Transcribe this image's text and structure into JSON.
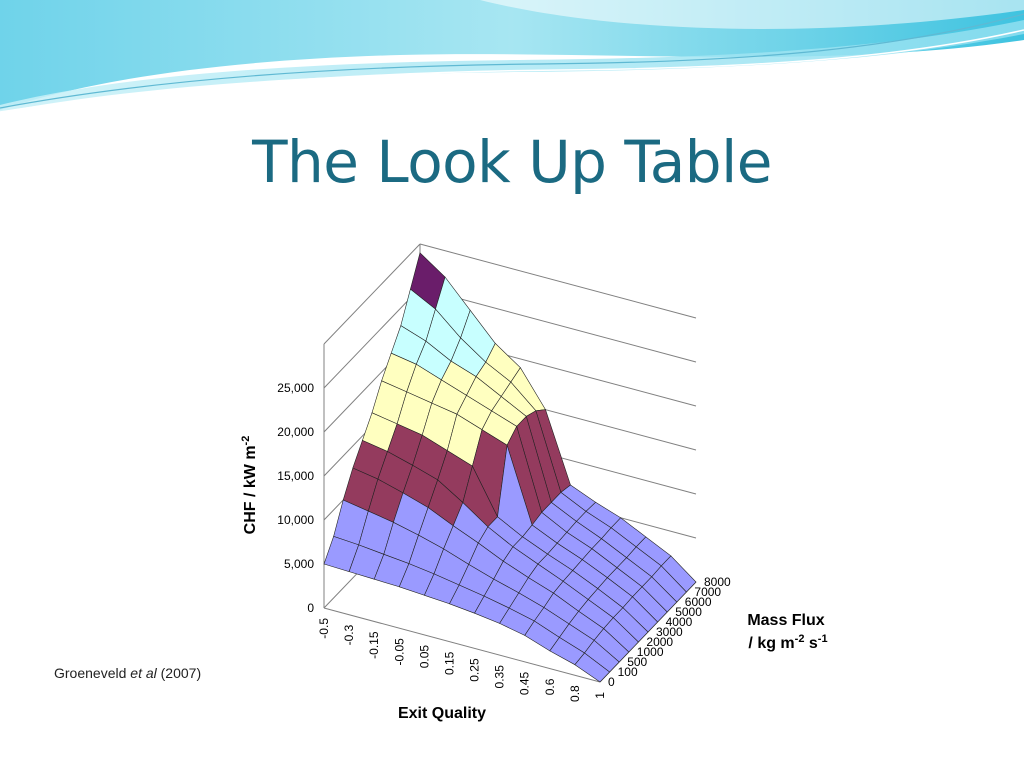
{
  "slide": {
    "title": "The Look Up Table",
    "citation": {
      "author": "Groeneveld",
      "etal": "et al",
      "year": "(2007)"
    }
  },
  "colors": {
    "title": "#1b6a82",
    "band_0_10000": "#9a9aff",
    "band_10000_15000": "#943b5e",
    "band_15000_20000": "#ffffc0",
    "band_20000_25000": "#c8ffff",
    "band_25000_30000": "#6a1d6a"
  },
  "chart_data": {
    "type": "surface3d",
    "title": "",
    "zlabel": "CHF / kW m",
    "zlabel_sup": "-2",
    "xlabel": "Exit Quality",
    "ylabel_line1": "Mass Flux",
    "ylabel_line2_parts": [
      "/ kg m",
      "-2",
      " s",
      "-1"
    ],
    "x_ticks": [
      "-0.5",
      "-0.3",
      "-0.15",
      "-0.05",
      "0.05",
      "0.15",
      "0.25",
      "0.35",
      "0.45",
      "0.6",
      "0.8",
      "1"
    ],
    "y_ticks": [
      "0",
      "100",
      "500",
      "1000",
      "2000",
      "3000",
      "4000",
      "5000",
      "6000",
      "7000",
      "8000"
    ],
    "z_ticks": [
      "0",
      "5,000",
      "10,000",
      "15,000",
      "20,000",
      "25,000"
    ],
    "zlim": [
      0,
      30000
    ],
    "grid": true,
    "surface_chf": [
      [
        5000,
        4900,
        4800,
        4700,
        4500,
        4300,
        4000,
        3600,
        3000,
        2000,
        1200,
        0
      ],
      [
        7000,
        6800,
        6500,
        6200,
        5800,
        5300,
        4800,
        4200,
        3500,
        2400,
        1400,
        0
      ],
      [
        10000,
        9500,
        9000,
        8300,
        7500,
        6500,
        5600,
        4800,
        3900,
        2800,
        1700,
        0
      ],
      [
        12500,
        12000,
        11200,
        10300,
        9000,
        7800,
        6500,
        5400,
        4400,
        3100,
        1900,
        0
      ],
      [
        14500,
        14000,
        13200,
        12300,
        10500,
        8500,
        7000,
        5800,
        4600,
        3300,
        2000,
        0
      ],
      [
        16500,
        16000,
        15500,
        14500,
        13500,
        8500,
        7000,
        5800,
        4700,
        3400,
        2000,
        0
      ],
      [
        19000,
        18500,
        18000,
        17500,
        16500,
        15500,
        7200,
        5900,
        4800,
        3500,
        2100,
        0
      ],
      [
        21000,
        20500,
        19500,
        18500,
        17500,
        16500,
        7500,
        6000,
        4900,
        3500,
        2100,
        0
      ],
      [
        23000,
        22000,
        20500,
        19500,
        18000,
        16500,
        7500,
        6100,
        4900,
        3500,
        2100,
        0
      ],
      [
        26000,
        24500,
        22000,
        20000,
        18500,
        16000,
        7500,
        6100,
        5000,
        3600,
        2200,
        0
      ],
      [
        29000,
        27000,
        24000,
        21000,
        19000,
        15000,
        7200,
        6000,
        5000,
        3600,
        2200,
        0
      ]
    ]
  }
}
